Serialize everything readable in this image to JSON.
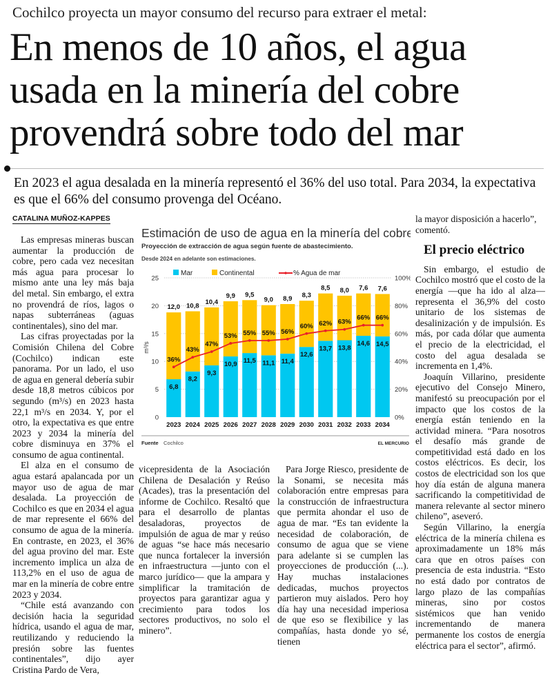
{
  "kicker": "Cochilco proyecta un mayor consumo del recurso para extraer el metal:",
  "headline": "En menos de 10 años, el agua usada en la minería del cobre provendrá sobre todo del mar",
  "deck": "En 2023 el agua desalada en la minería representó el 36% del uso total. Para 2034, la expectativa es que el 66% del consumo provenga del Océano.",
  "byline": "CATALINA MUÑOZ-KAPPES",
  "column1": [
    "Las empresas mineras buscan aumentar la producción de cobre, pero cada vez necesitan más agua para procesar lo mismo ante una ley más baja del metal. Sin embargo, el extra no provendrá de ríos, lagos o napas subterráneas (aguas continentales), sino del mar.",
    "Las cifras proyectadas por la Comisión Chilena del Cobre (Cochilco) indican este panorama. Por un lado, el uso de agua en general debería subir desde 18,8 metros cúbicos por segundo (m³/s) en 2023 hasta 22,1 m³/s en 2034. Y, por el otro, la expectativa es que entre 2023 y 2034 la minería del cobre disminuya en 37% el consumo de agua continental.",
    "El alza en el consumo de agua estará apalancada por un mayor uso de agua de mar desalada. La proyección de Cochilco es que en 2034 el agua de mar represente el 66% del consumo de agua de la minería. En contraste, en 2023, el 36% del agua provino del mar. Este incremento implica un alza de 113,2% en el uso de agua de mar en la minería de cobre entre 2023 y 2034.",
    "“Chile está avanzando con decisión hacia la seguridad hídrica, usando el agua de mar, reutilizando y reduciendo la presión sobre las fuentes continentales”, dijo ayer Cristina Pardo de Vera,"
  ],
  "column2": [
    "vicepresidenta de la Asociación Chilena de Desalación y Reúso (Acades), tras la presentación del informe de Cochilco. Resaltó que para el desarrollo de plantas desaladoras, proyectos de impulsión de agua de mar y reúso de aguas “se hace más necesario que nunca fortalecer la inversión en infraestructura —junto con el marco jurídico— que la ampara y simplificar la tramitación de proyectos para garantizar agua y crecimiento para todos los sectores productivos, no solo el minero”."
  ],
  "column3": [
    "Para Jorge Riesco, presidente de la Sonami, se necesita más colaboración entre empresas para la construcción de infraestructura que permita ahondar el uso de agua de mar. “Es tan evidente la necesidad de colaboración, de consumo de agua que se viene para adelante si se cumplen las proyecciones de producción (...). Hay muchas instalaciones dedicadas, muchos proyectos partieron muy aislados. Pero hoy día hay una necesidad imperiosa de que eso se flexibilice y las compañías, hasta donde yo sé, tienen"
  ],
  "column4": {
    "lead": "la mayor disposición a hacerlo”, comentó.",
    "subhead": "El precio eléctrico",
    "paragraphs": [
      "Sin embargo, el estudio de Cochilco mostró que el costo de la energía —que ha ido al alza— representa el 36,9% del costo unitario de los sistemas de desalinización y de impulsión. Es más, por cada dólar que aumenta el precio de la electricidad, el costo del agua desalada se incrementa en 1,4%.",
      "Joaquín Villarino, presidente ejecutivo del Consejo Minero, manifestó su preocupación por el impacto que los costos de la energía están teniendo en la actividad minera. “Para nosotros el desafío más grande de competitividad está dado en los costos eléctricos. Es decir, los costos de electricidad son los que hoy día están de alguna manera sacrificando la competitividad de manera relevante al sector minero chileno”, aseveró.",
      "Según Villarino, la energía eléctrica de la minería chilena es aproximadamente un 18% más cara que en otros países con presencia de esta industria. “Esto no está dado por contratos de largo plazo de las compañías mineras, sino por costos sistémicos que han venido incrementando de manera permanente los costos de energía eléctrica para el sector”, afirmó."
    ]
  },
  "chart_data": {
    "type": "bar",
    "stacked": true,
    "title": "Estimación de uso de agua en la minería del cobre",
    "subtitle": "Proyección de extracción de agua según fuente de abastecimiento.",
    "note": "Desde 2024 en adelante son estimaciones.",
    "ylabel": "m³/s",
    "ylim": [
      0,
      25
    ],
    "yticks": [
      "0",
      "5",
      "10",
      "15",
      "20",
      "25"
    ],
    "y2lim": [
      0,
      100
    ],
    "y2ticks": [
      "0%",
      "20%",
      "40%",
      "60%",
      "80%",
      "100%"
    ],
    "grid": true,
    "legend": "top",
    "categories": [
      "2023",
      "2024",
      "2025",
      "2026",
      "2027",
      "2028",
      "2029",
      "2030",
      "2031",
      "2032",
      "2033",
      "2034"
    ],
    "series": [
      {
        "name": "Mar",
        "color": "#00c8f0",
        "values": [
          6.8,
          8.2,
          9.3,
          10.9,
          11.5,
          11.1,
          11.4,
          12.6,
          13.7,
          13.8,
          14.6,
          14.5
        ],
        "labels": [
          "6,8",
          "8,2",
          "9,3",
          "10,9",
          "11,5",
          "11,1",
          "11,4",
          "12,6",
          "13,7",
          "13,8",
          "14,6",
          "14,5"
        ]
      },
      {
        "name": "Continental",
        "color": "#ffc400",
        "values": [
          12.0,
          10.8,
          10.4,
          9.9,
          9.5,
          9.0,
          8.9,
          8.3,
          8.5,
          8.0,
          7.6,
          7.6
        ],
        "labels": [
          "12,0",
          "10,8",
          "10,4",
          "9,9",
          "9,5",
          "9,0",
          "8,9",
          "8,3",
          "8,5",
          "8,0",
          "7,6",
          "7,6"
        ]
      },
      {
        "name": "% Agua de mar",
        "type": "line",
        "axis": "right",
        "color": "#e8202a",
        "values": [
          36,
          43,
          47,
          53,
          55,
          55,
          56,
          60,
          62,
          63,
          66,
          66
        ],
        "labels": [
          "36%",
          "43%",
          "47%",
          "53%",
          "55%",
          "55%",
          "56%",
          "60%",
          "62%",
          "63%",
          "66%",
          "66%"
        ]
      }
    ],
    "source_label": "Fuente",
    "source": "Cochilco",
    "credit": "EL MERCURIO"
  }
}
